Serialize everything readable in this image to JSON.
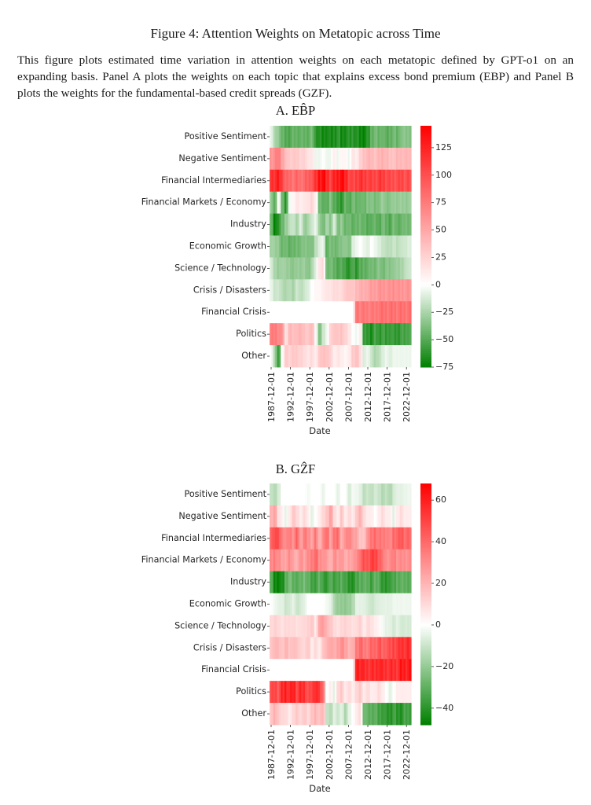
{
  "figure": {
    "title": "Figure 4: Attention Weights on Metatopic across Time",
    "caption": "This figure plots estimated time variation in attention weights on each metatopic defined by GPT-o1 on an expanding basis. Panel A plots the weights on each topic that explains excess bond premium (EBP) and Panel B plots the weights for the fundamental-based credit spreads (GZF)."
  },
  "colors": {
    "negative": "#008000",
    "zero": "#ffffff",
    "positive": "#ff0000"
  },
  "chart_data": [
    {
      "type": "heatmap",
      "title": "A. EB̂P",
      "xlabel": "Date",
      "ylabel": "",
      "x_ticks": [
        "1987-12-01",
        "1992-12-01",
        "1997-12-01",
        "2002-12-01",
        "2007-12-01",
        "2012-12-01",
        "2017-12-01",
        "2022-12-01"
      ],
      "x_range": [
        "1987-12-01",
        "2024-06-01"
      ],
      "x_years": [
        1987,
        1988,
        1989,
        1990,
        1991,
        1992,
        1993,
        1994,
        1995,
        1996,
        1997,
        1998,
        1999,
        2000,
        2001,
        2002,
        2003,
        2004,
        2005,
        2006,
        2007,
        2008,
        2009,
        2010,
        2011,
        2012,
        2013,
        2014,
        2015,
        2016,
        2017,
        2018,
        2019,
        2020,
        2021,
        2022,
        2023,
        2024
      ],
      "rows": [
        "Positive Sentiment",
        "Negative Sentiment",
        "Financial Intermediaries",
        "Financial Markets / Economy",
        "Industry",
        "Economic Growth",
        "Science / Technology",
        "Crisis / Disasters",
        "Financial Crisis",
        "Politics",
        "Other"
      ],
      "colorbar": {
        "min": -75,
        "max": 145,
        "ticks": [
          -75,
          -50,
          -25,
          0,
          25,
          50,
          75,
          100,
          125
        ],
        "tick_labels": [
          "−75",
          "−50",
          "−25",
          "0",
          "25",
          "50",
          "75",
          "100",
          "125"
        ]
      },
      "values": [
        [
          -5,
          -25,
          -30,
          -45,
          -50,
          -50,
          -45,
          -45,
          -45,
          -45,
          -45,
          -40,
          -60,
          -65,
          -70,
          -65,
          -70,
          -65,
          -60,
          -70,
          -65,
          -65,
          -60,
          -65,
          -70,
          -70,
          -65,
          -45,
          -40,
          -45,
          -40,
          -50,
          -45,
          -40,
          -45,
          -35,
          -35,
          -35
        ],
        [
          60,
          65,
          75,
          55,
          35,
          30,
          30,
          30,
          25,
          25,
          15,
          15,
          -5,
          -5,
          0,
          -5,
          -5,
          10,
          -5,
          5,
          5,
          -5,
          15,
          10,
          25,
          35,
          40,
          40,
          35,
          40,
          45,
          40,
          35,
          35,
          40,
          40,
          40,
          40
        ],
        [
          115,
          120,
          125,
          110,
          85,
          85,
          80,
          85,
          80,
          85,
          90,
          100,
          110,
          135,
          140,
          120,
          110,
          120,
          130,
          140,
          125,
          110,
          100,
          110,
          115,
          110,
          110,
          105,
          105,
          110,
          110,
          105,
          100,
          100,
          100,
          105,
          100,
          100
        ],
        [
          -30,
          -50,
          5,
          -40,
          -60,
          -5,
          5,
          15,
          10,
          15,
          15,
          25,
          10,
          -40,
          -45,
          -50,
          -35,
          -50,
          -55,
          -60,
          -45,
          -50,
          -40,
          -45,
          -40,
          -45,
          -35,
          -35,
          -40,
          -35,
          -30,
          -35,
          -35,
          -30,
          -30,
          -30,
          -30,
          -30
        ],
        [
          -40,
          -75,
          -60,
          -45,
          -30,
          -20,
          -15,
          -25,
          -10,
          -30,
          -25,
          -15,
          -5,
          -30,
          -40,
          -25,
          -35,
          -10,
          -40,
          -30,
          -45,
          -40,
          -45,
          -45,
          -40,
          -45,
          -50,
          -45,
          -45,
          -50,
          -40,
          -45,
          -50,
          -40,
          -45,
          -45,
          -40,
          -40
        ],
        [
          -25,
          -30,
          -30,
          -45,
          -40,
          -45,
          -45,
          -40,
          -40,
          -35,
          -35,
          -40,
          -20,
          -10,
          -5,
          -45,
          -40,
          -40,
          -40,
          -35,
          -30,
          -40,
          -10,
          -5,
          0,
          -5,
          -10,
          0,
          -5,
          -10,
          -15,
          -20,
          -20,
          -15,
          -20,
          -15,
          -15,
          -10
        ],
        [
          -10,
          -25,
          -30,
          -25,
          -30,
          -30,
          -35,
          -30,
          -30,
          -30,
          -35,
          -25,
          -10,
          15,
          20,
          -40,
          -40,
          -45,
          -50,
          -50,
          -55,
          -65,
          -50,
          -60,
          -50,
          -45,
          -45,
          -40,
          -40,
          -35,
          -40,
          -35,
          -35,
          -30,
          -30,
          -25,
          -20,
          -15
        ],
        [
          -5,
          -15,
          -15,
          -20,
          -25,
          -20,
          -25,
          -15,
          -20,
          -15,
          -10,
          0,
          5,
          5,
          10,
          15,
          15,
          20,
          20,
          20,
          30,
          35,
          30,
          40,
          45,
          45,
          50,
          55,
          55,
          60,
          60,
          60,
          60,
          65,
          60,
          60,
          60,
          60
        ],
        [
          0,
          0,
          0,
          0,
          0,
          0,
          0,
          0,
          0,
          0,
          0,
          0,
          0,
          0,
          0,
          0,
          0,
          0,
          0,
          0,
          0,
          0,
          0,
          80,
          75,
          75,
          75,
          75,
          75,
          80,
          80,
          80,
          80,
          80,
          80,
          80,
          80,
          80
        ],
        [
          70,
          75,
          70,
          60,
          15,
          40,
          35,
          40,
          40,
          35,
          30,
          40,
          5,
          -40,
          -15,
          -5,
          25,
          35,
          30,
          35,
          25,
          15,
          0,
          -5,
          10,
          -60,
          -60,
          -65,
          -55,
          -60,
          -55,
          -60,
          -55,
          -60,
          -60,
          -55,
          -55,
          -50
        ],
        [
          0,
          -25,
          -60,
          0,
          30,
          25,
          30,
          30,
          25,
          20,
          15,
          20,
          10,
          30,
          35,
          35,
          25,
          10,
          15,
          10,
          5,
          10,
          30,
          35,
          20,
          -10,
          -5,
          -15,
          -25,
          -20,
          -10,
          -5,
          -10,
          -5,
          -5,
          -5,
          -5,
          -5
        ]
      ]
    },
    {
      "type": "heatmap",
      "title": "B. GẐF",
      "xlabel": "Date",
      "ylabel": "",
      "x_ticks": [
        "1987-12-01",
        "1992-12-01",
        "1997-12-01",
        "2002-12-01",
        "2007-12-01",
        "2012-12-01",
        "2017-12-01",
        "2022-12-01"
      ],
      "x_range": [
        "1987-12-01",
        "2024-06-01"
      ],
      "x_years": [
        1987,
        1988,
        1989,
        1990,
        1991,
        1992,
        1993,
        1994,
        1995,
        1996,
        1997,
        1998,
        1999,
        2000,
        2001,
        2002,
        2003,
        2004,
        2005,
        2006,
        2007,
        2008,
        2009,
        2010,
        2011,
        2012,
        2013,
        2014,
        2015,
        2016,
        2017,
        2018,
        2019,
        2020,
        2021,
        2022,
        2023,
        2024
      ],
      "rows": [
        "Positive Sentiment",
        "Negative Sentiment",
        "Financial Intermediaries",
        "Financial Markets / Economy",
        "Industry",
        "Economic Growth",
        "Science / Technology",
        "Crisis / Disasters",
        "Financial Crisis",
        "Politics",
        "Other"
      ],
      "colorbar": {
        "min": -48,
        "max": 68,
        "ticks": [
          -40,
          -20,
          0,
          20,
          40,
          60
        ],
        "tick_labels": [
          "−40",
          "−20",
          "0",
          "20",
          "40",
          "60"
        ]
      },
      "values": [
        [
          -10,
          -15,
          -8,
          0,
          0,
          0,
          0,
          0,
          0,
          0,
          -2,
          0,
          0,
          0,
          -4,
          0,
          0,
          0,
          -5,
          0,
          0,
          -8,
          -2,
          -3,
          -5,
          -12,
          -10,
          -12,
          -8,
          -10,
          -14,
          -12,
          -15,
          -8,
          -5,
          -5,
          -4,
          -3
        ],
        [
          20,
          25,
          8,
          5,
          -5,
          5,
          15,
          10,
          5,
          10,
          5,
          -5,
          0,
          5,
          10,
          15,
          25,
          10,
          5,
          15,
          5,
          10,
          5,
          15,
          20,
          10,
          5,
          5,
          0,
          5,
          10,
          5,
          5,
          -5,
          5,
          10,
          5,
          5
        ],
        [
          40,
          50,
          45,
          35,
          30,
          35,
          30,
          40,
          25,
          35,
          30,
          25,
          35,
          20,
          30,
          40,
          25,
          35,
          40,
          20,
          30,
          35,
          25,
          25,
          15,
          15,
          30,
          35,
          40,
          35,
          35,
          35,
          30,
          40,
          40,
          45,
          40,
          40
        ],
        [
          30,
          35,
          30,
          25,
          25,
          30,
          25,
          20,
          30,
          25,
          30,
          35,
          40,
          30,
          30,
          25,
          20,
          30,
          25,
          30,
          20,
          25,
          25,
          30,
          40,
          45,
          45,
          50,
          50,
          45,
          35,
          30,
          30,
          35,
          30,
          30,
          30,
          30
        ],
        [
          -30,
          -45,
          -45,
          -45,
          -30,
          -25,
          -30,
          -30,
          -30,
          -25,
          -30,
          -35,
          -35,
          -30,
          -35,
          -40,
          -30,
          -35,
          -35,
          -30,
          -35,
          -40,
          -40,
          -35,
          -30,
          -30,
          -30,
          -35,
          -30,
          -30,
          -40,
          -40,
          -35,
          -35,
          -30,
          -30,
          -30,
          -30
        ],
        [
          0,
          -3,
          -5,
          -5,
          -10,
          -8,
          -5,
          -10,
          -8,
          -5,
          0,
          0,
          0,
          0,
          0,
          -2,
          -5,
          -15,
          -20,
          -20,
          -20,
          -20,
          -15,
          -5,
          -5,
          -5,
          -8,
          -10,
          -8,
          -6,
          -5,
          -5,
          -5,
          -3,
          -3,
          -3,
          -3,
          -3
        ],
        [
          10,
          12,
          10,
          8,
          10,
          10,
          10,
          8,
          10,
          10,
          12,
          15,
          5,
          25,
          25,
          20,
          15,
          10,
          8,
          10,
          12,
          10,
          8,
          10,
          12,
          5,
          10,
          8,
          5,
          3,
          -2,
          -5,
          -5,
          -8,
          -5,
          -8,
          -8,
          -8
        ],
        [
          15,
          20,
          18,
          15,
          20,
          15,
          18,
          15,
          12,
          10,
          15,
          5,
          10,
          5,
          15,
          20,
          25,
          20,
          25,
          30,
          25,
          20,
          20,
          35,
          40,
          35,
          35,
          40,
          40,
          45,
          40,
          45,
          45,
          50,
          50,
          55,
          55,
          55
        ],
        [
          0,
          0,
          0,
          0,
          0,
          0,
          0,
          0,
          0,
          0,
          0,
          0,
          0,
          0,
          0,
          0,
          0,
          0,
          0,
          0,
          0,
          0,
          0,
          60,
          60,
          55,
          55,
          55,
          55,
          60,
          55,
          55,
          55,
          55,
          55,
          60,
          60,
          60
        ],
        [
          45,
          50,
          45,
          55,
          60,
          55,
          60,
          50,
          55,
          55,
          45,
          50,
          60,
          50,
          40,
          0,
          5,
          -5,
          10,
          15,
          5,
          10,
          5,
          10,
          15,
          5,
          10,
          5,
          5,
          10,
          5,
          0,
          -5,
          0,
          5,
          5,
          5,
          5
        ],
        [
          15,
          20,
          15,
          10,
          10,
          5,
          10,
          15,
          10,
          15,
          10,
          15,
          20,
          15,
          20,
          -10,
          -15,
          -5,
          -10,
          -5,
          -15,
          -5,
          0,
          5,
          10,
          -25,
          -30,
          -30,
          -30,
          -35,
          -35,
          -40,
          -40,
          -35,
          -40,
          -40,
          -35,
          -35
        ]
      ]
    }
  ]
}
